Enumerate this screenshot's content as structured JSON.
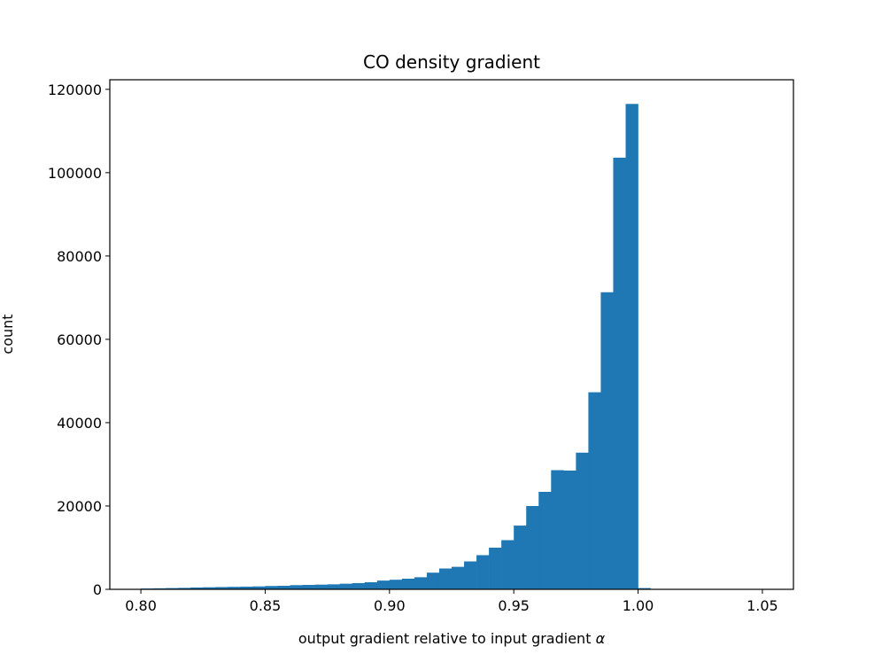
{
  "chart_data": {
    "type": "bar",
    "subtype": "histogram",
    "title": "CO density gradient",
    "xlabel": "output gradient relative to input gradient",
    "xlabel_symbol": "α",
    "ylabel": "count",
    "bin_start": 0.8,
    "bin_width": 0.005,
    "values": [
      200,
      250,
      300,
      350,
      450,
      500,
      550,
      600,
      650,
      700,
      800,
      850,
      1000,
      1060,
      1130,
      1200,
      1350,
      1500,
      1700,
      2100,
      2300,
      2550,
      2900,
      4000,
      5000,
      5400,
      6700,
      8200,
      10000,
      11800,
      15300,
      20000,
      23400,
      28600,
      28500,
      32800,
      47300,
      71300,
      103600,
      116500,
      300,
      0,
      0,
      0,
      0,
      0,
      0,
      0,
      0,
      0
    ],
    "xlim": [
      0.7875,
      1.0625
    ],
    "ylim": [
      0,
      122300
    ],
    "xticks": [
      0.8,
      0.85,
      0.9,
      0.95,
      1.0,
      1.05
    ],
    "xtick_labels": [
      "0.80",
      "0.85",
      "0.90",
      "0.95",
      "1.00",
      "1.05"
    ],
    "yticks": [
      0,
      20000,
      40000,
      60000,
      80000,
      100000,
      120000
    ],
    "ytick_labels": [
      "0",
      "20000",
      "40000",
      "60000",
      "80000",
      "100000",
      "120000"
    ],
    "grid": false,
    "bar_color": "#1f77b4"
  }
}
